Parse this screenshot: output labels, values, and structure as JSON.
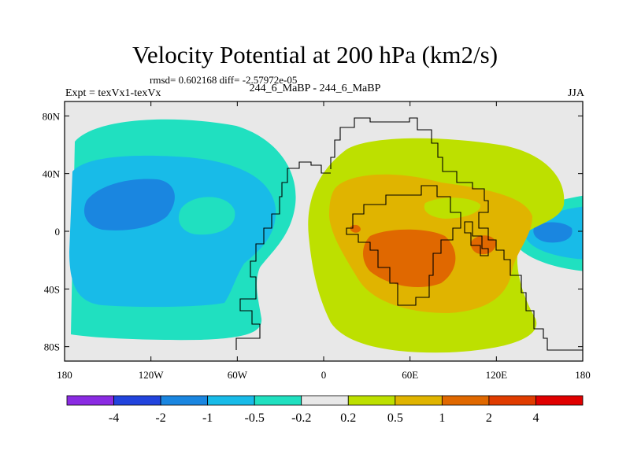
{
  "chart_data": {
    "type": "contour-map",
    "title": "Velocity Potential at 200 hPa (km2/s)",
    "rmsd_label": "rmsd= 0.602168",
    "diff_label": "diff= -2.57972e-05",
    "experiment": "Expt = texVx1-texVx",
    "comparison": "244_6_MaBP - 244_6_MaBP",
    "season": "JJA",
    "x_ticks": [
      "180",
      "120W",
      "60W",
      "0",
      "60E",
      "120E",
      "180"
    ],
    "y_ticks": [
      "80N",
      "40N",
      "0",
      "40S",
      "80S"
    ],
    "x_range": [
      -180,
      180
    ],
    "y_range": [
      -90,
      90
    ],
    "colorbar": {
      "labels": [
        "-4",
        "-2",
        "-1",
        "-0.5",
        "-0.2",
        "0.2",
        "0.5",
        "1",
        "2",
        "4"
      ],
      "colors": [
        "#8a2be2",
        "#2244dd",
        "#1a86e0",
        "#18bbe8",
        "#20e0c0",
        "#e8e8e8",
        "#bde000",
        "#e0b400",
        "#e06800",
        "#e03c00",
        "#e00000"
      ]
    },
    "field_colors": {
      "background": "#e8e8e8",
      "negative_weak": "#20e0c0",
      "negative_mid": "#18bbe8",
      "negative_strong": "#1a86e0",
      "positive_weak": "#bde000",
      "positive_mid": "#e0b400",
      "positive_strong": "#e06800"
    }
  }
}
